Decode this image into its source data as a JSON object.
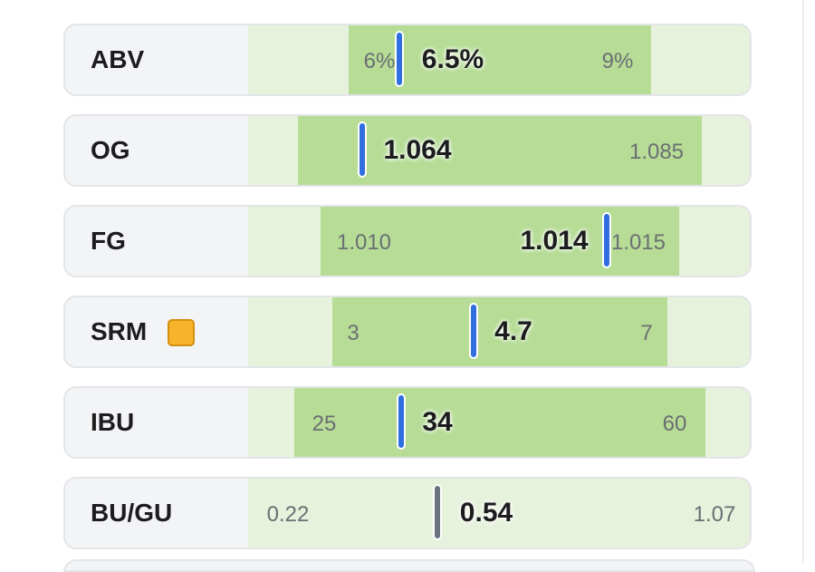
{
  "rows": [
    {
      "label": "ABV",
      "min": "6%",
      "value": "6.5%",
      "max": "9%"
    },
    {
      "label": "OG",
      "value": "1.064",
      "max": "1.085"
    },
    {
      "label": "FG",
      "min": "1.010",
      "value": "1.014",
      "max": "1.015"
    },
    {
      "label": "SRM",
      "min": "3",
      "value": "4.7",
      "max": "7"
    },
    {
      "label": "IBU",
      "min": "25",
      "value": "34",
      "max": "60"
    },
    {
      "label": "BU/GU",
      "min": "0.22",
      "value": "0.54",
      "max": "1.07"
    }
  ]
}
